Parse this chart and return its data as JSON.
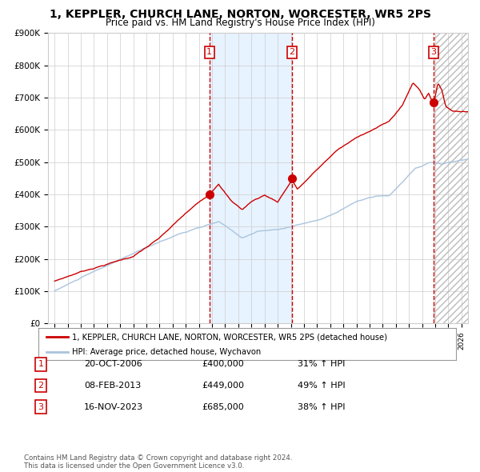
{
  "title": "1, KEPPLER, CHURCH LANE, NORTON, WORCESTER, WR5 2PS",
  "subtitle": "Price paid vs. HM Land Registry's House Price Index (HPI)",
  "title_fontsize": 10,
  "subtitle_fontsize": 8.5,
  "ylim": [
    0,
    900000
  ],
  "yticks": [
    0,
    100000,
    200000,
    300000,
    400000,
    500000,
    600000,
    700000,
    800000,
    900000
  ],
  "ytick_labels": [
    "£0",
    "£100K",
    "£200K",
    "£300K",
    "£400K",
    "£500K",
    "£600K",
    "£700K",
    "£800K",
    "£900K"
  ],
  "xlim_start": 1994.5,
  "xlim_end": 2026.5,
  "xtick_years": [
    1995,
    1996,
    1997,
    1998,
    1999,
    2000,
    2001,
    2002,
    2003,
    2004,
    2005,
    2006,
    2007,
    2008,
    2009,
    2010,
    2011,
    2012,
    2013,
    2014,
    2015,
    2016,
    2017,
    2018,
    2019,
    2020,
    2021,
    2022,
    2023,
    2024,
    2025,
    2026
  ],
  "hpi_color": "#aac4dd",
  "price_color": "#cc0000",
  "sale_dot_color": "#cc0000",
  "dashed_line_color": "#cc0000",
  "background_color": "#ffffff",
  "grid_color": "#cccccc",
  "shade_color": "#ddeeff",
  "sale1_x": 2006.8,
  "sale1_y": 400000,
  "sale1_label": "1",
  "sale2_x": 2013.1,
  "sale2_y": 449000,
  "sale2_label": "2",
  "sale3_x": 2023.88,
  "sale3_y": 685000,
  "sale3_label": "3",
  "shade_start": 2006.8,
  "shade_end": 2013.1,
  "hatch_start": 2023.88,
  "hatch_end": 2026.5,
  "legend_line1": "1, KEPPLER, CHURCH LANE, NORTON, WORCESTER, WR5 2PS (detached house)",
  "legend_line2": "HPI: Average price, detached house, Wychavon",
  "table_data": [
    {
      "num": "1",
      "date": "20-OCT-2006",
      "price": "£400,000",
      "hpi": "31% ↑ HPI"
    },
    {
      "num": "2",
      "date": "08-FEB-2013",
      "price": "£449,000",
      "hpi": "49% ↑ HPI"
    },
    {
      "num": "3",
      "date": "16-NOV-2023",
      "price": "£685,000",
      "hpi": "38% ↑ HPI"
    }
  ],
  "footer": "Contains HM Land Registry data © Crown copyright and database right 2024.\nThis data is licensed under the Open Government Licence v3.0."
}
